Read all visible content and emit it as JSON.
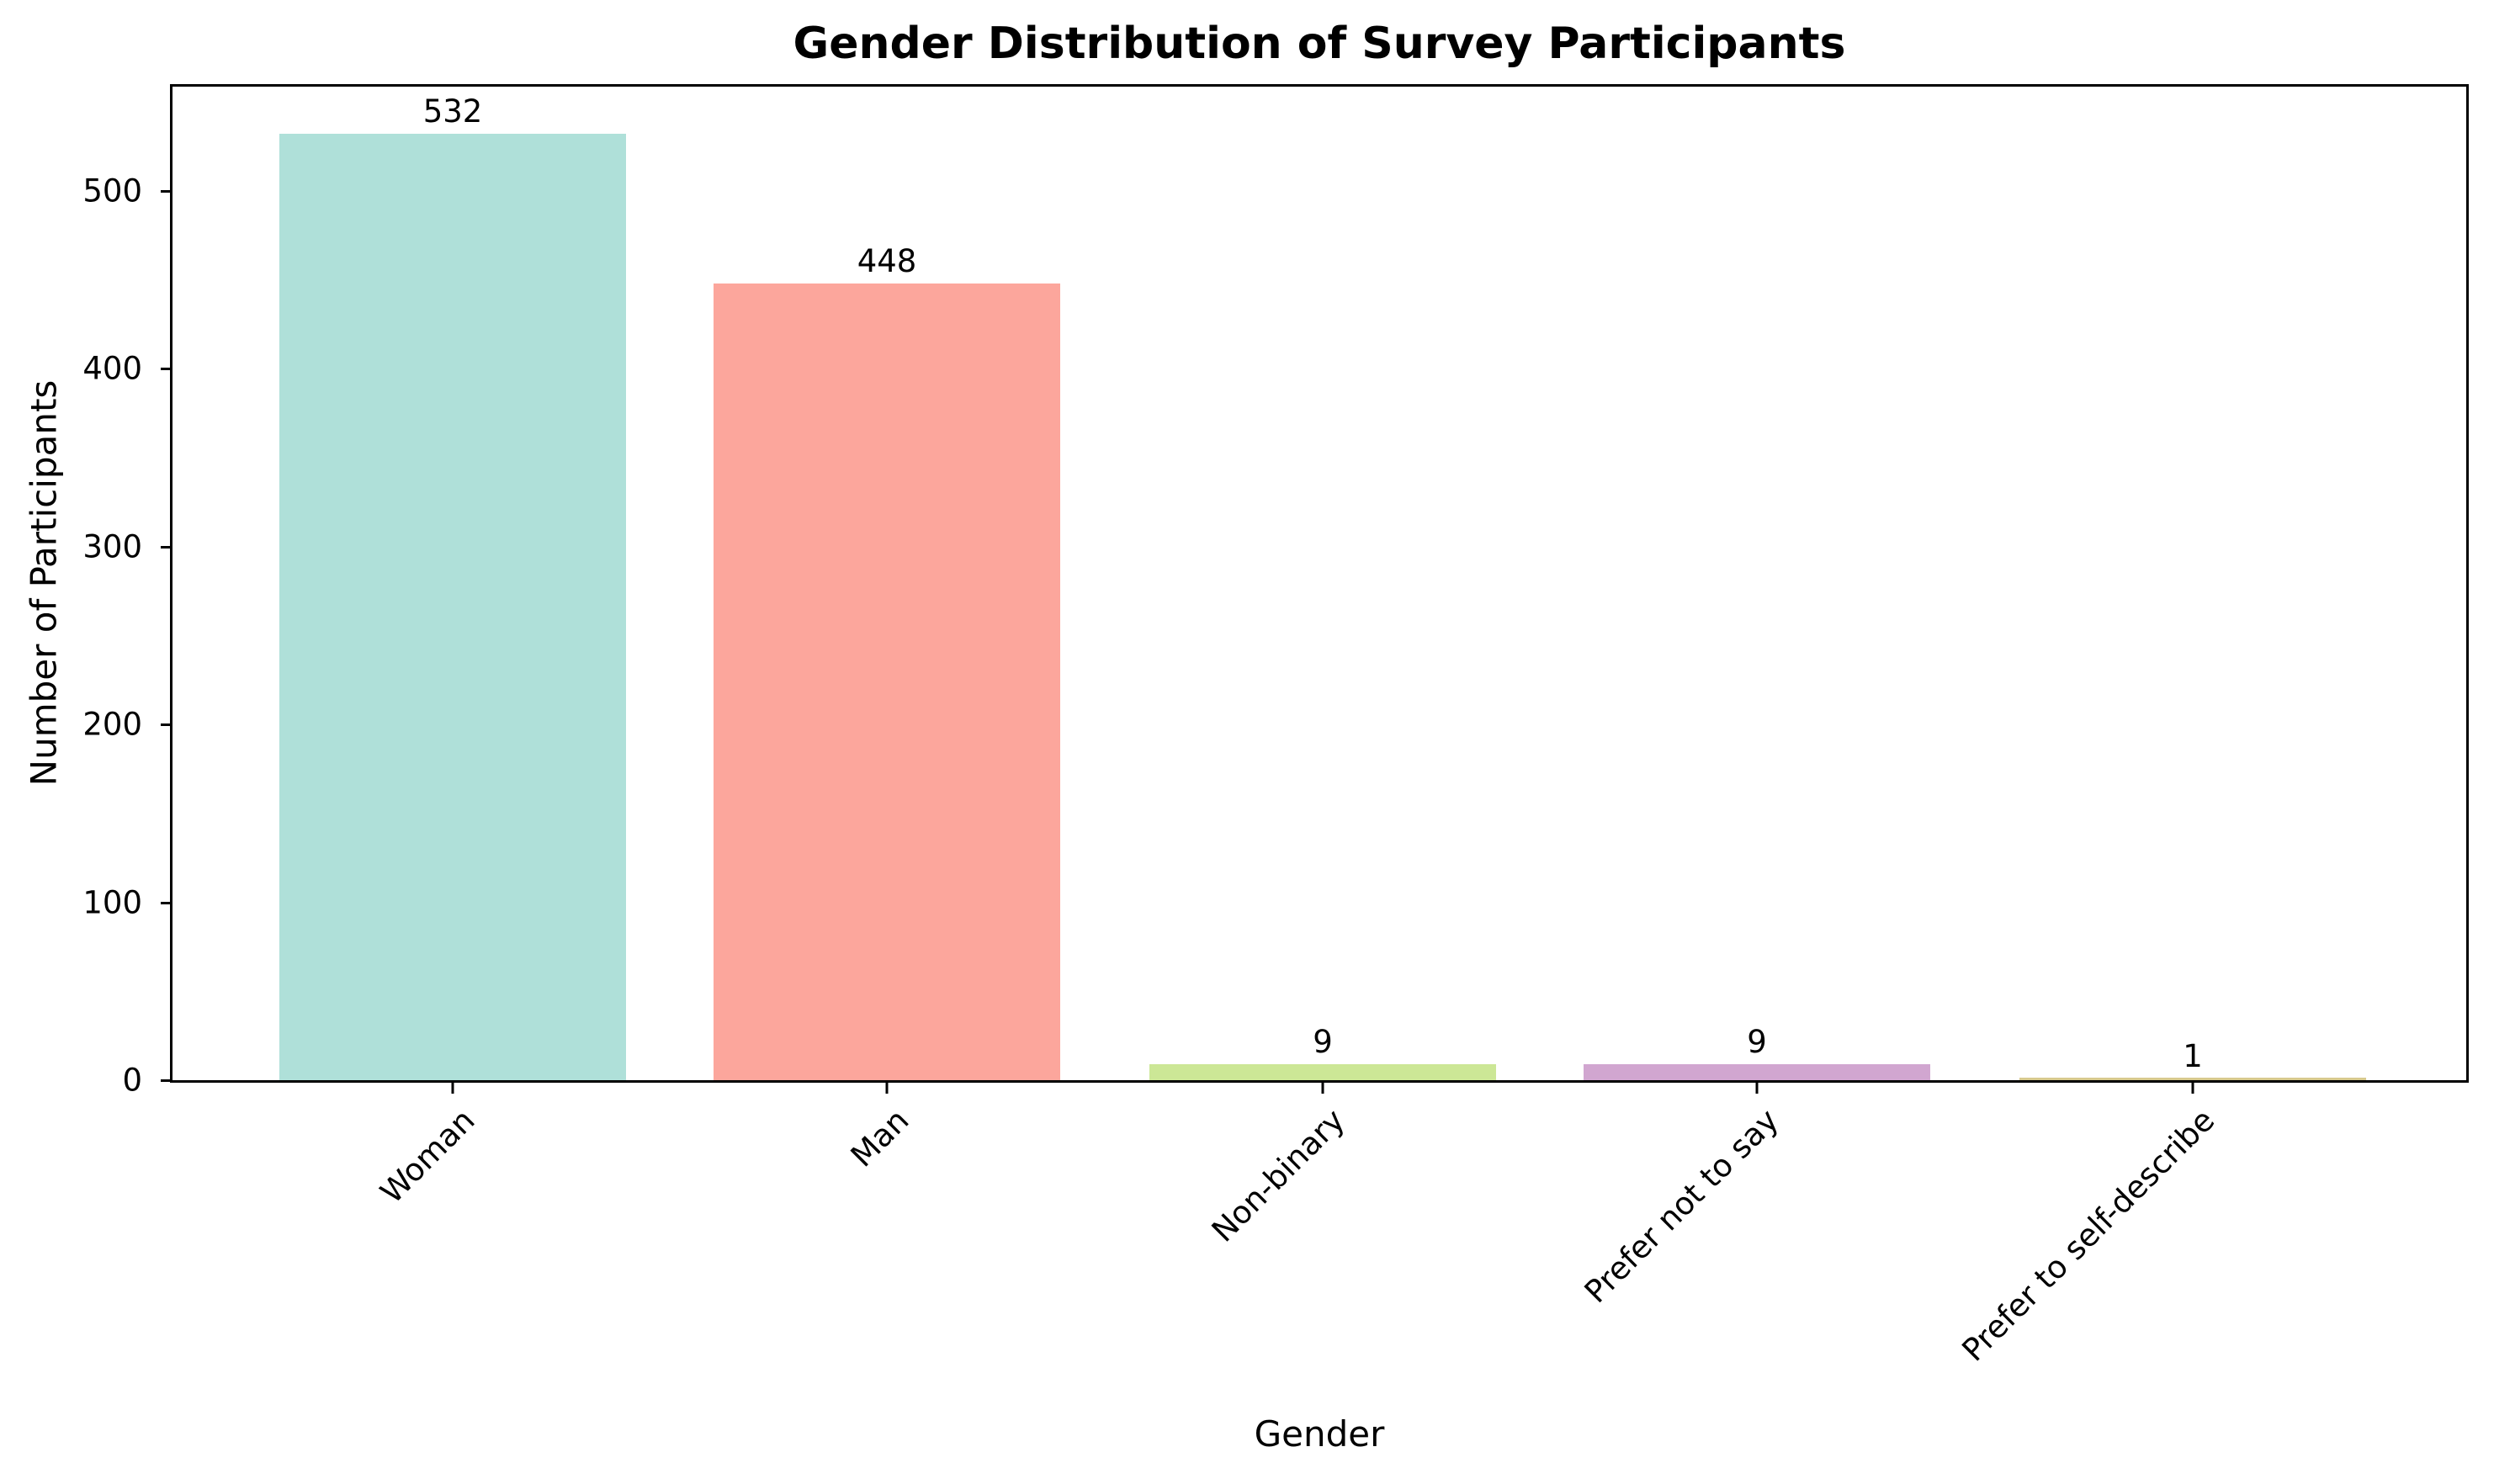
{
  "chart_data": {
    "type": "bar",
    "title": "Gender Distribution of Survey Participants",
    "xlabel": "Gender",
    "ylabel": "Number of Participants",
    "categories": [
      "Woman",
      "Man",
      "Non-binary",
      "Prefer not to say",
      "Prefer to self-describe"
    ],
    "values": [
      532,
      448,
      9,
      9,
      1
    ],
    "colors": [
      "#afe0d9",
      "#fca69c",
      "#cce796",
      "#d1a6d0",
      "#d7c98e"
    ],
    "ylim": [
      0,
      558.6
    ],
    "yticks": [
      0,
      100,
      200,
      300,
      400,
      500
    ],
    "grid": false,
    "legend": null,
    "bar_value_labels": [
      "532",
      "448",
      "9",
      "9",
      "1"
    ],
    "xtick_rotation": -45
  }
}
